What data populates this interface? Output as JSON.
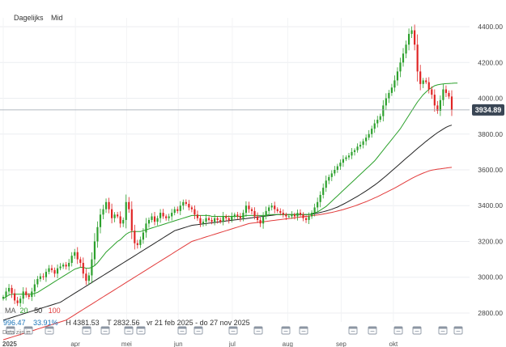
{
  "toolbar": {
    "interval": "Dagelijks",
    "type": "Mid"
  },
  "price_badge": "3934.89",
  "indicator": {
    "prefix": "MA",
    "ma20": "20",
    "ma50": "50",
    "ma100": "100",
    "ma20_color": "#2aa02a",
    "ma50_color": "#222222",
    "ma100_color": "#e23b3b"
  },
  "stats": {
    "last": "996.47",
    "change": "33.91%",
    "high": "H 4381.53",
    "low": "T 2832.56",
    "range": "vr 21 feb 2025 - do 27 nov 2025",
    "note": "Data zijn in"
  },
  "colors": {
    "up": "#2ca02c",
    "down": "#e02424",
    "badge": "#3a4655",
    "accent": "#1a73b8"
  },
  "chart_data": {
    "type": "candlestick",
    "x_range": [
      "2025-02-21",
      "2025-11-27"
    ],
    "ylim": [
      2750,
      4450
    ],
    "y_ticks": [
      "4400.00",
      "4200.00",
      "4000.00",
      "3800.00",
      "3600.00",
      "3400.00",
      "3200.00",
      "3000.00",
      "2800.00"
    ],
    "x_labels": [
      "2025",
      "apr",
      "mei",
      "jun",
      "jul",
      "aug",
      "sep",
      "okt"
    ],
    "close": [
      2890,
      2920,
      2940,
      2910,
      2870,
      2855,
      2880,
      2920,
      2900,
      2890,
      2920,
      2960,
      2990,
      3005,
      3000,
      3030,
      3050,
      3040,
      3020,
      3050,
      3060,
      3070,
      3060,
      3080,
      3120,
      3140,
      3100,
      3080,
      3020,
      2980,
      3010,
      3100,
      3200,
      3280,
      3350,
      3380,
      3420,
      3380,
      3330,
      3350,
      3340,
      3300,
      3320,
      3420,
      3380,
      3260,
      3190,
      3180,
      3210,
      3250,
      3300,
      3320,
      3340,
      3310,
      3330,
      3360,
      3340,
      3330,
      3340,
      3360,
      3380,
      3370,
      3400,
      3420,
      3410,
      3390,
      3380,
      3350,
      3330,
      3300,
      3310,
      3330,
      3320,
      3310,
      3330,
      3320,
      3310,
      3340,
      3330,
      3320,
      3340,
      3350,
      3340,
      3330,
      3360,
      3400,
      3380,
      3370,
      3340,
      3320,
      3300,
      3340,
      3370,
      3390,
      3400,
      3380,
      3370,
      3360,
      3350,
      3340,
      3340,
      3350,
      3340,
      3360,
      3350,
      3330,
      3320,
      3340,
      3360,
      3390,
      3420,
      3460,
      3500,
      3540,
      3560,
      3580,
      3600,
      3620,
      3640,
      3660,
      3670,
      3680,
      3700,
      3710,
      3730,
      3740,
      3760,
      3780,
      3800,
      3830,
      3860,
      3880,
      3900,
      3960,
      4000,
      4030,
      4060,
      4100,
      4150,
      4200,
      4250,
      4300,
      4360,
      4380,
      4300,
      4150,
      4080,
      4100,
      4090,
      4050,
      4020,
      3960,
      3930,
      3990,
      4050,
      4030,
      4010,
      3935
    ],
    "ma20": [
      2880,
      2890,
      2900,
      2905,
      2905,
      2905,
      2905,
      2905,
      2905,
      2905,
      2905,
      2910,
      2915,
      2925,
      2935,
      2945,
      2955,
      2965,
      2975,
      2985,
      2995,
      3005,
      3015,
      3025,
      3035,
      3045,
      3050,
      3055,
      3055,
      3050,
      3050,
      3055,
      3065,
      3080,
      3100,
      3120,
      3140,
      3155,
      3170,
      3185,
      3200,
      3210,
      3225,
      3240,
      3250,
      3255,
      3255,
      3255,
      3255,
      3260,
      3265,
      3270,
      3275,
      3280,
      3285,
      3290,
      3295,
      3300,
      3305,
      3310,
      3315,
      3320,
      3325,
      3330,
      3335,
      3340,
      3345,
      3345,
      3345,
      3345,
      3345,
      3345,
      3345,
      3340,
      3340,
      3340,
      3340,
      3340,
      3340,
      3340,
      3340,
      3340,
      3340,
      3340,
      3340,
      3345,
      3345,
      3345,
      3345,
      3345,
      3345,
      3345,
      3345,
      3350,
      3350,
      3350,
      3350,
      3350,
      3350,
      3350,
      3350,
      3350,
      3350,
      3350,
      3350,
      3350,
      3350,
      3350,
      3355,
      3360,
      3365,
      3375,
      3385,
      3395,
      3410,
      3425,
      3440,
      3455,
      3470,
      3485,
      3500,
      3515,
      3530,
      3545,
      3560,
      3575,
      3590,
      3605,
      3620,
      3635,
      3650,
      3670,
      3690,
      3710,
      3730,
      3750,
      3770,
      3790,
      3810,
      3830,
      3855,
      3880,
      3905,
      3930,
      3955,
      3980,
      4000,
      4020,
      4035,
      4050,
      4060,
      4070,
      4075,
      4078,
      4080,
      4082,
      4083,
      4084,
      4085,
      4085
    ],
    "ma50": [
      2760,
      2765,
      2770,
      2775,
      2780,
      2785,
      2790,
      2795,
      2800,
      2805,
      2810,
      2815,
      2820,
      2825,
      2830,
      2835,
      2840,
      2845,
      2850,
      2855,
      2860,
      2870,
      2880,
      2890,
      2900,
      2910,
      2920,
      2930,
      2940,
      2950,
      2960,
      2970,
      2980,
      2990,
      3000,
      3010,
      3020,
      3030,
      3040,
      3050,
      3060,
      3070,
      3080,
      3090,
      3100,
      3110,
      3120,
      3130,
      3140,
      3150,
      3160,
      3170,
      3180,
      3190,
      3200,
      3210,
      3220,
      3230,
      3240,
      3250,
      3260,
      3265,
      3270,
      3275,
      3280,
      3285,
      3290,
      3292,
      3294,
      3296,
      3298,
      3300,
      3302,
      3304,
      3306,
      3308,
      3310,
      3312,
      3314,
      3316,
      3318,
      3320,
      3322,
      3324,
      3326,
      3328,
      3330,
      3332,
      3334,
      3336,
      3338,
      3340,
      3342,
      3344,
      3346,
      3348,
      3350,
      3350,
      3350,
      3350,
      3350,
      3350,
      3350,
      3350,
      3350,
      3350,
      3350,
      3350,
      3352,
      3355,
      3358,
      3362,
      3366,
      3370,
      3375,
      3380,
      3386,
      3392,
      3400,
      3408,
      3416,
      3425,
      3434,
      3443,
      3452,
      3462,
      3472,
      3482,
      3493,
      3504,
      3515,
      3527,
      3540,
      3553,
      3566,
      3580,
      3594,
      3608,
      3622,
      3636,
      3650,
      3664,
      3678,
      3692,
      3706,
      3720,
      3733,
      3746,
      3759,
      3772,
      3784,
      3796,
      3808,
      3818,
      3828,
      3838,
      3845,
      3850
    ],
    "ma100": [
      2650,
      2655,
      2660,
      2665,
      2670,
      2675,
      2680,
      2685,
      2690,
      2695,
      2700,
      2705,
      2710,
      2715,
      2720,
      2725,
      2730,
      2735,
      2740,
      2745,
      2750,
      2755,
      2760,
      2770,
      2780,
      2790,
      2800,
      2810,
      2820,
      2830,
      2840,
      2850,
      2860,
      2870,
      2880,
      2890,
      2900,
      2910,
      2920,
      2930,
      2940,
      2950,
      2960,
      2970,
      2980,
      2990,
      3000,
      3010,
      3020,
      3030,
      3040,
      3050,
      3060,
      3070,
      3080,
      3090,
      3100,
      3110,
      3120,
      3130,
      3140,
      3150,
      3160,
      3170,
      3180,
      3190,
      3200,
      3205,
      3210,
      3215,
      3220,
      3225,
      3230,
      3235,
      3240,
      3245,
      3250,
      3255,
      3260,
      3265,
      3270,
      3275,
      3280,
      3285,
      3290,
      3295,
      3300,
      3302,
      3304,
      3306,
      3308,
      3310,
      3312,
      3314,
      3316,
      3318,
      3320,
      3322,
      3324,
      3326,
      3328,
      3330,
      3332,
      3334,
      3336,
      3338,
      3340,
      3342,
      3344,
      3346,
      3348,
      3350,
      3353,
      3356,
      3359,
      3362,
      3366,
      3370,
      3374,
      3378,
      3383,
      3388,
      3393,
      3398,
      3404,
      3410,
      3416,
      3422,
      3429,
      3436,
      3443,
      3450,
      3458,
      3466,
      3474,
      3482,
      3490,
      3498,
      3507,
      3516,
      3525,
      3534,
      3543,
      3552,
      3560,
      3568,
      3575,
      3582,
      3588,
      3594,
      3598,
      3601,
      3604,
      3606,
      3608,
      3610,
      3612,
      3614
    ]
  }
}
